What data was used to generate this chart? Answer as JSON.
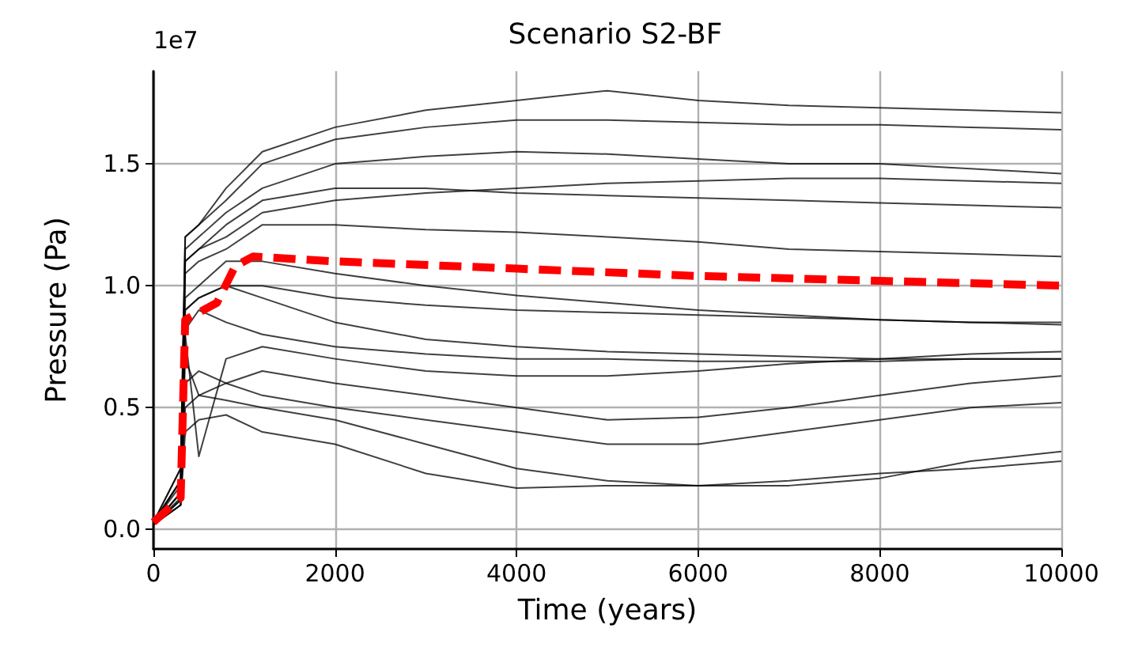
{
  "chart_data": {
    "type": "line",
    "title": "Scenario S2-BF",
    "xlabel": "Time (years)",
    "ylabel": "Pressure (Pa)",
    "annotations": [
      "1e7"
    ],
    "xlim": [
      0,
      10000
    ],
    "xticks": [
      0,
      2000,
      4000,
      6000,
      8000,
      10000
    ],
    "ylim": [
      -0.08,
      1.88
    ],
    "yticks": [
      {
        "value": 0,
        "label": "0.0"
      },
      0.5,
      {
        "value": 1,
        "label": "1.0"
      },
      1.5
    ],
    "grid": true,
    "marker": "none",
    "x": [
      0,
      300,
      350,
      500,
      800,
      1200,
      2000,
      3000,
      4000,
      5000,
      6000,
      7000,
      8000,
      9000,
      10000
    ],
    "series": [
      {
        "color": "#000000",
        "line_style": "solid",
        "values": [
          0.03,
          0.25,
          1.2,
          1.25,
          1.4,
          1.55,
          1.65,
          1.72,
          1.76,
          1.8,
          1.76,
          1.74,
          1.73,
          1.72,
          1.71
        ]
      },
      {
        "color": "#000000",
        "line_style": "solid",
        "values": [
          0.03,
          0.25,
          1.2,
          1.25,
          1.35,
          1.5,
          1.6,
          1.65,
          1.68,
          1.68,
          1.67,
          1.66,
          1.66,
          1.65,
          1.64
        ]
      },
      {
        "color": "#000000",
        "line_style": "solid",
        "values": [
          0.03,
          0.2,
          1.15,
          1.2,
          1.3,
          1.4,
          1.5,
          1.53,
          1.55,
          1.54,
          1.52,
          1.5,
          1.5,
          1.48,
          1.46
        ]
      },
      {
        "color": "#000000",
        "line_style": "solid",
        "values": [
          0.03,
          0.2,
          1.1,
          1.15,
          1.2,
          1.3,
          1.35,
          1.38,
          1.4,
          1.42,
          1.43,
          1.44,
          1.44,
          1.43,
          1.42
        ]
      },
      {
        "color": "#000000",
        "line_style": "solid",
        "values": [
          0.03,
          0.2,
          1.1,
          1.15,
          1.25,
          1.35,
          1.4,
          1.4,
          1.38,
          1.37,
          1.36,
          1.35,
          1.34,
          1.33,
          1.32
        ]
      },
      {
        "color": "#000000",
        "line_style": "solid",
        "values": [
          0.03,
          0.18,
          1.05,
          1.1,
          1.15,
          1.25,
          1.25,
          1.23,
          1.22,
          1.2,
          1.18,
          1.15,
          1.14,
          1.13,
          1.12
        ]
      },
      {
        "color": "#000000",
        "line_style": "solid",
        "values": [
          0.02,
          0.15,
          0.95,
          1.0,
          1.1,
          1.1,
          1.05,
          1.0,
          0.96,
          0.93,
          0.9,
          0.88,
          0.86,
          0.85,
          0.84
        ]
      },
      {
        "color": "#000000",
        "line_style": "solid",
        "values": [
          0.02,
          0.15,
          0.9,
          0.95,
          1.0,
          1.0,
          0.95,
          0.92,
          0.9,
          0.89,
          0.88,
          0.87,
          0.86,
          0.85,
          0.85
        ]
      },
      {
        "color": "#000000",
        "line_style": "solid",
        "values": [
          0.02,
          0.15,
          0.9,
          0.95,
          1.0,
          0.95,
          0.85,
          0.78,
          0.75,
          0.73,
          0.72,
          0.71,
          0.7,
          0.7,
          0.7
        ]
      },
      {
        "color": "#000000",
        "line_style": "solid",
        "values": [
          0.02,
          0.13,
          0.82,
          0.9,
          0.85,
          0.8,
          0.75,
          0.72,
          0.7,
          0.7,
          0.69,
          0.69,
          0.69,
          0.7,
          0.7
        ]
      },
      {
        "color": "#000000",
        "line_style": "solid",
        "values": [
          0.02,
          0.12,
          0.8,
          0.3,
          0.7,
          0.75,
          0.7,
          0.65,
          0.63,
          0.63,
          0.65,
          0.68,
          0.7,
          0.72,
          0.73
        ]
      },
      {
        "color": "#000000",
        "line_style": "solid",
        "values": [
          0.02,
          0.12,
          0.7,
          0.55,
          0.6,
          0.65,
          0.6,
          0.55,
          0.5,
          0.45,
          0.46,
          0.5,
          0.55,
          0.6,
          0.63
        ]
      },
      {
        "color": "#000000",
        "line_style": "solid",
        "values": [
          0.02,
          0.1,
          0.6,
          0.65,
          0.6,
          0.55,
          0.5,
          0.45,
          0.4,
          0.35,
          0.35,
          0.4,
          0.45,
          0.5,
          0.52
        ]
      },
      {
        "color": "#000000",
        "line_style": "solid",
        "values": [
          0.02,
          0.1,
          0.5,
          0.55,
          0.53,
          0.5,
          0.45,
          0.35,
          0.25,
          0.2,
          0.18,
          0.2,
          0.23,
          0.25,
          0.28
        ]
      },
      {
        "color": "#000000",
        "line_style": "solid",
        "values": [
          0.02,
          0.1,
          0.4,
          0.45,
          0.47,
          0.4,
          0.35,
          0.23,
          0.17,
          0.18,
          0.18,
          0.18,
          0.21,
          0.28,
          0.32
        ]
      },
      {
        "color": "#ff0000",
        "line_style": "dashed",
        "x": [
          0,
          300,
          350,
          500,
          700,
          900,
          1100,
          2000,
          4000,
          6000,
          8000,
          10000
        ],
        "values": [
          0.03,
          0.13,
          0.86,
          0.89,
          0.93,
          1.08,
          1.12,
          1.1,
          1.07,
          1.04,
          1.02,
          1.0
        ]
      }
    ]
  }
}
